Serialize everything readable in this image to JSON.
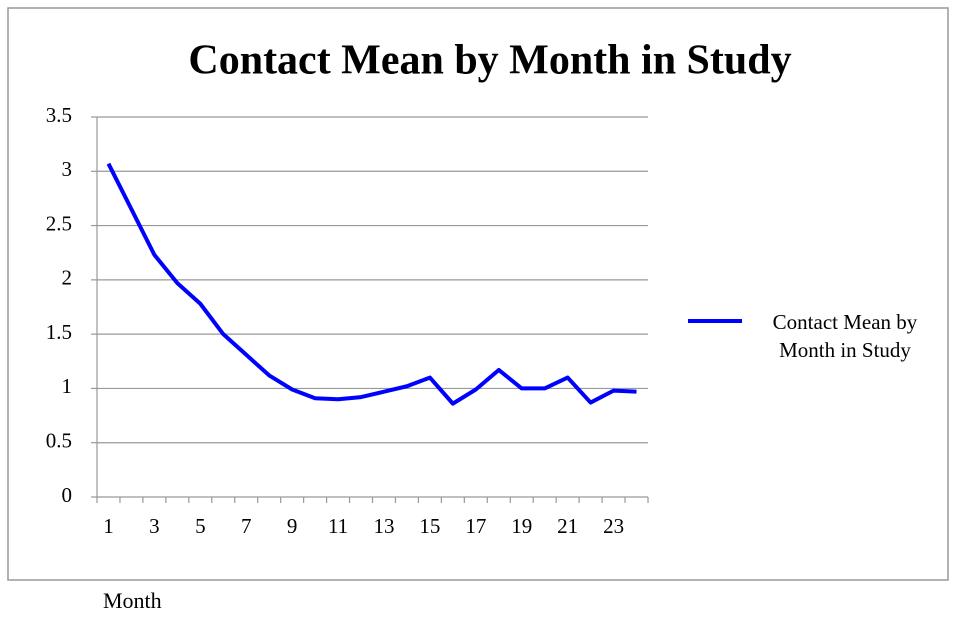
{
  "chart_data": {
    "type": "line",
    "title": "Contact Mean by Month in Study",
    "x_label": "Month",
    "categories": [
      1,
      null,
      3,
      null,
      5,
      null,
      7,
      null,
      9,
      null,
      11,
      null,
      13,
      null,
      15,
      null,
      17,
      null,
      19,
      null,
      21,
      null,
      23,
      null
    ],
    "series": [
      {
        "name": "Contact Mean by Month in Study",
        "color": "#0000ff",
        "values": [
          3.07,
          2.65,
          2.23,
          1.97,
          1.78,
          1.5,
          1.31,
          1.12,
          0.99,
          0.91,
          0.9,
          0.92,
          0.97,
          1.02,
          1.1,
          0.86,
          0.99,
          1.17,
          1.0,
          1.0,
          1.1,
          0.87,
          0.98,
          0.97
        ]
      }
    ],
    "ylim": [
      0,
      3.5
    ],
    "yticks": [
      0,
      0.5,
      1,
      1.5,
      2,
      2.5,
      3,
      3.5
    ],
    "grid": true,
    "legend": "right"
  }
}
